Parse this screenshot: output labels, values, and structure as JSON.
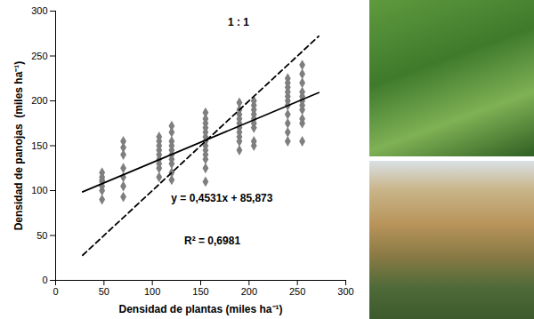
{
  "chart_data": {
    "type": "scatter",
    "x_label": "Densidad de plantas (miles ha⁻¹)",
    "y_label": "Densidad de panojas  (miles ha⁻¹)",
    "xlim": [
      0,
      300
    ],
    "ylim": [
      0,
      300
    ],
    "xticks": [
      0,
      50,
      100,
      150,
      200,
      250,
      300
    ],
    "yticks": [
      0,
      50,
      100,
      150,
      200,
      250,
      300
    ],
    "grid": false,
    "series": [
      {
        "type": "scatter",
        "marker": "diamond",
        "color": "#7f7f7f",
        "x": [
          48,
          48,
          48,
          48,
          48,
          48,
          48,
          70,
          70,
          70,
          70,
          70,
          70,
          70,
          107,
          107,
          107,
          107,
          107,
          107,
          107,
          107,
          107,
          120,
          120,
          120,
          120,
          120,
          120,
          120,
          120,
          120,
          120,
          155,
          155,
          155,
          155,
          155,
          155,
          155,
          155,
          155,
          155,
          155,
          155,
          155,
          190,
          190,
          190,
          190,
          190,
          190,
          190,
          190,
          190,
          190,
          205,
          205,
          205,
          205,
          205,
          205,
          205,
          205,
          205,
          240,
          240,
          240,
          240,
          240,
          240,
          240,
          240,
          240,
          240,
          240,
          255,
          255,
          255,
          255,
          255,
          255,
          255,
          255,
          255,
          255,
          255
        ],
        "values": [
          90,
          100,
          105,
          110,
          115,
          120,
          112,
          93,
          105,
          115,
          125,
          140,
          148,
          155,
          115,
          125,
          130,
          135,
          140,
          145,
          150,
          155,
          160,
          112,
          120,
          130,
          135,
          140,
          145,
          150,
          155,
          165,
          172,
          110,
          125,
          135,
          140,
          145,
          150,
          155,
          160,
          165,
          170,
          175,
          180,
          187,
          145,
          155,
          160,
          165,
          170,
          175,
          180,
          185,
          190,
          198,
          150,
          155,
          170,
          175,
          180,
          185,
          190,
          195,
          200,
          155,
          165,
          175,
          185,
          195,
          200,
          205,
          210,
          215,
          220,
          225,
          155,
          175,
          180,
          190,
          195,
          200,
          205,
          210,
          220,
          230,
          240
        ]
      },
      {
        "type": "line",
        "line_style": "solid",
        "color": "#000000",
        "x": [
          28,
          272
        ],
        "values": [
          98.56,
          209.12
        ]
      },
      {
        "type": "line",
        "line_style": "dashed",
        "color": "#000000",
        "x": [
          28,
          272
        ],
        "values": [
          28,
          272
        ]
      }
    ],
    "annotations": [
      {
        "text": "1 : 1",
        "x": 189,
        "y": 287
      },
      {
        "text": "y = 0,4531x + 85,873",
        "x": 172,
        "y": 91
      },
      {
        "text": "R² = 0,6981",
        "x": 162,
        "y": 44
      }
    ]
  }
}
